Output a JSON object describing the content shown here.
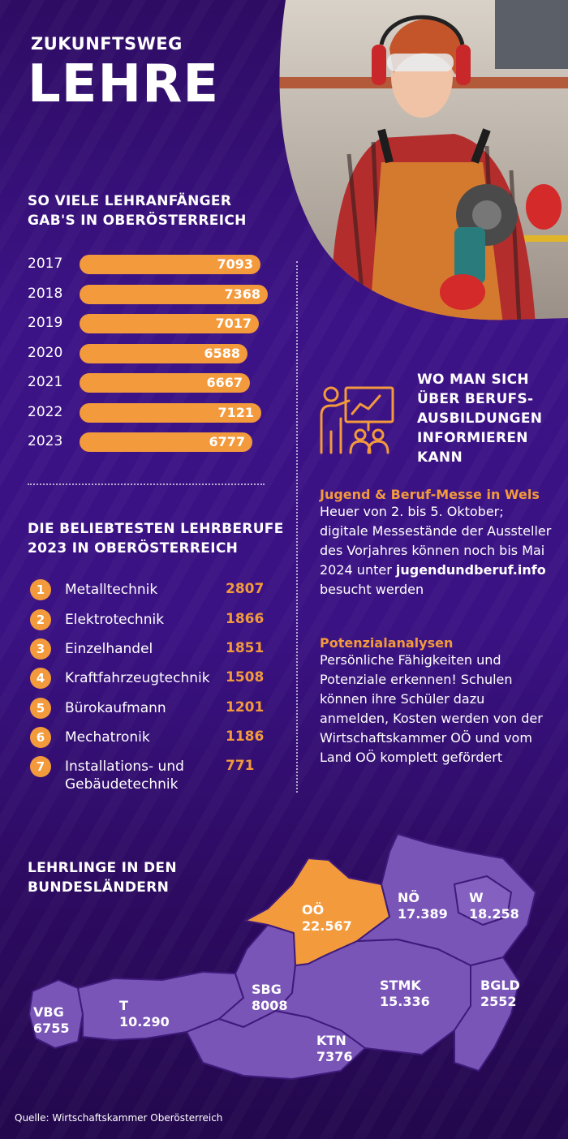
{
  "header": {
    "kicker": "ZUKUNFTSWEG",
    "title": "LEHRE"
  },
  "starters_section": {
    "heading_line1": "SO VIELE LEHRANFÄNGER",
    "heading_line2": "GAB'S IN OBERÖSTERREICH"
  },
  "jobs_section": {
    "heading_line1": "DIE BELIEBTESTEN LEHRBERUFE",
    "heading_line2": "2023 IN OBERÖSTERREICH"
  },
  "info_section": {
    "heading_lines": [
      "WO MAN SICH",
      "ÜBER BERUFS-",
      "AUSBILDUNGEN",
      "INFORMIEREN",
      "KANN"
    ],
    "item1_title": "Jugend & Beruf-Messe in Wels",
    "item1_text_before": "Heuer von 2. bis 5. Oktober; digitale Messestände der Aussteller des Vorjahres können noch bis Mai 2024 unter ",
    "item1_link": "jugendundberuf.info",
    "item1_text_after": " besucht werden",
    "item2_title": "Potenzialanalysen",
    "item2_text": "Persönliche Fähigkeiten und Potenziale erkennen! Schulen können ihre Schüler dazu anmelden, Kosten werden von der Wirtschaftskammer OÖ und vom Land OÖ komplett gefördert"
  },
  "map_section": {
    "heading_line1": "LEHRLINGE IN DEN",
    "heading_line2": "BUNDESLÄNDERN"
  },
  "source": "Quelle: Wirtschaftskammer Oberösterreich",
  "colors": {
    "accent": "#f39a3c",
    "background": "#3a1283",
    "map_region": "#7a55b8",
    "highlight_region": "#f39a3c"
  },
  "icons": {
    "info_icon": "presentation-teacher-icon"
  },
  "chart_data": [
    {
      "type": "bar",
      "orientation": "horizontal",
      "title": "SO VIELE LEHRANFÄNGER GAB'S IN OBERÖSTERREICH",
      "categories": [
        "2017",
        "2018",
        "2019",
        "2020",
        "2021",
        "2022",
        "2023"
      ],
      "values": [
        7093,
        7368,
        7017,
        6588,
        6667,
        7121,
        6777
      ],
      "value_labels": [
        "7093",
        "7368",
        "7017",
        "6588",
        "6667",
        "7121",
        "6777"
      ]
    },
    {
      "type": "table",
      "title": "DIE BELIEBTESTEN LEHRBERUFE 2023 IN OBERÖSTERREICH",
      "rows": [
        {
          "rank": "1",
          "name": "Metalltechnik",
          "value": "2807"
        },
        {
          "rank": "2",
          "name": "Elektrotechnik",
          "value": "1866"
        },
        {
          "rank": "3",
          "name": "Einzelhandel",
          "value": "1851"
        },
        {
          "rank": "4",
          "name": "Kraftfahrzeugtechnik",
          "value": "1508"
        },
        {
          "rank": "5",
          "name": "Bürokaufmann",
          "value": "1201"
        },
        {
          "rank": "6",
          "name": "Mechatronik",
          "value": "1186"
        },
        {
          "rank": "7",
          "name": "Installations- und Gebäudetechnik",
          "value": "771"
        }
      ]
    },
    {
      "type": "map",
      "title": "LEHRLINGE IN DEN BUNDESLÄNDERN",
      "regions": [
        {
          "code": "OÖ",
          "value": "22.567",
          "highlight": true
        },
        {
          "code": "NÖ",
          "value": "17.389"
        },
        {
          "code": "W",
          "value": "18.258"
        },
        {
          "code": "BGLD",
          "value": "2552"
        },
        {
          "code": "STMK",
          "value": "15.336"
        },
        {
          "code": "KTN",
          "value": "7376"
        },
        {
          "code": "SBG",
          "value": "8008"
        },
        {
          "code": "T",
          "value": "10.290"
        },
        {
          "code": "VBG",
          "value": "6755"
        }
      ]
    }
  ]
}
